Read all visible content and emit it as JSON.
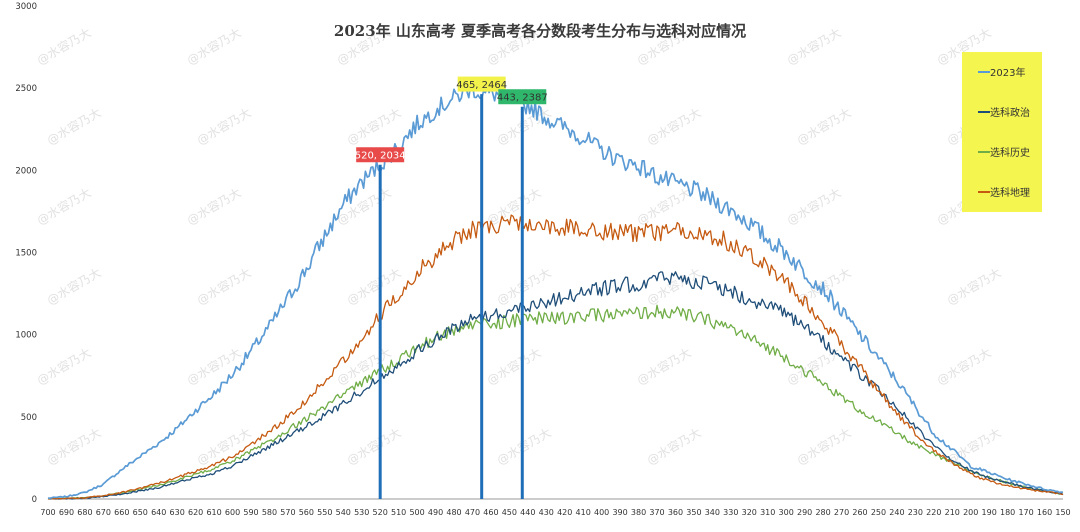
{
  "chart_data": {
    "type": "line",
    "title": "2023年 山东高考 夏季高考各分数段考生分布与选科对应情况",
    "xlabel": "",
    "ylabel": "",
    "x_start": 700,
    "x_end": 150,
    "x_step": 1,
    "x_tick_labels": [
      "700",
      "690",
      "680",
      "670",
      "660",
      "650",
      "640",
      "630",
      "620",
      "610",
      "600",
      "590",
      "580",
      "570",
      "560",
      "550",
      "540",
      "530",
      "520",
      "510",
      "500",
      "490",
      "480",
      "470",
      "460",
      "450",
      "440",
      "430",
      "420",
      "410",
      "400",
      "390",
      "380",
      "370",
      "360",
      "350",
      "340",
      "330",
      "320",
      "310",
      "300",
      "290",
      "280",
      "270",
      "260",
      "250",
      "240",
      "230",
      "220",
      "210",
      "200",
      "190",
      "180",
      "170",
      "160",
      "150"
    ],
    "ylim": [
      0,
      3000
    ],
    "y_ticks": [
      0,
      500,
      1000,
      1500,
      2000,
      2500,
      3000
    ],
    "y_tick_labels": [
      "0",
      "500",
      "1000",
      "1500",
      "2000",
      "2500",
      "3000"
    ],
    "grid": false,
    "legend_position": "top-right",
    "series": [
      {
        "name": "2023年",
        "color": "#5b9bd5",
        "key_points": [
          [
            700,
            5
          ],
          [
            690,
            15
          ],
          [
            680,
            40
          ],
          [
            670,
            90
          ],
          [
            660,
            180
          ],
          [
            650,
            260
          ],
          [
            640,
            340
          ],
          [
            630,
            430
          ],
          [
            620,
            540
          ],
          [
            610,
            640
          ],
          [
            600,
            760
          ],
          [
            590,
            900
          ],
          [
            580,
            1050
          ],
          [
            570,
            1220
          ],
          [
            560,
            1400
          ],
          [
            550,
            1600
          ],
          [
            540,
            1790
          ],
          [
            530,
            1930
          ],
          [
            520,
            2034
          ],
          [
            510,
            2150
          ],
          [
            500,
            2280
          ],
          [
            490,
            2370
          ],
          [
            480,
            2440
          ],
          [
            470,
            2500
          ],
          [
            465,
            2464
          ],
          [
            460,
            2470
          ],
          [
            450,
            2440
          ],
          [
            443,
            2387
          ],
          [
            440,
            2400
          ],
          [
            430,
            2320
          ],
          [
            420,
            2260
          ],
          [
            410,
            2200
          ],
          [
            400,
            2120
          ],
          [
            390,
            2060
          ],
          [
            380,
            2030
          ],
          [
            370,
            1960
          ],
          [
            360,
            1920
          ],
          [
            350,
            1880
          ],
          [
            340,
            1820
          ],
          [
            330,
            1760
          ],
          [
            320,
            1680
          ],
          [
            310,
            1580
          ],
          [
            300,
            1500
          ],
          [
            290,
            1380
          ],
          [
            280,
            1280
          ],
          [
            270,
            1140
          ],
          [
            260,
            1000
          ],
          [
            250,
            860
          ],
          [
            240,
            720
          ],
          [
            230,
            560
          ],
          [
            220,
            400
          ],
          [
            210,
            300
          ],
          [
            200,
            200
          ],
          [
            190,
            160
          ],
          [
            180,
            120
          ],
          [
            170,
            90
          ],
          [
            160,
            60
          ],
          [
            150,
            40
          ]
        ]
      },
      {
        "name": "选科政治",
        "color": "#1f4e79",
        "key_points": [
          [
            700,
            0
          ],
          [
            690,
            2
          ],
          [
            680,
            5
          ],
          [
            670,
            15
          ],
          [
            660,
            30
          ],
          [
            650,
            50
          ],
          [
            640,
            70
          ],
          [
            630,
            100
          ],
          [
            620,
            130
          ],
          [
            610,
            160
          ],
          [
            600,
            200
          ],
          [
            590,
            260
          ],
          [
            580,
            320
          ],
          [
            570,
            380
          ],
          [
            560,
            440
          ],
          [
            550,
            510
          ],
          [
            540,
            580
          ],
          [
            530,
            660
          ],
          [
            520,
            740
          ],
          [
            510,
            820
          ],
          [
            500,
            900
          ],
          [
            490,
            970
          ],
          [
            480,
            1040
          ],
          [
            470,
            1100
          ],
          [
            460,
            1120
          ],
          [
            450,
            1140
          ],
          [
            440,
            1180
          ],
          [
            430,
            1200
          ],
          [
            420,
            1230
          ],
          [
            410,
            1260
          ],
          [
            400,
            1280
          ],
          [
            390,
            1300
          ],
          [
            380,
            1310
          ],
          [
            370,
            1340
          ],
          [
            360,
            1350
          ],
          [
            350,
            1330
          ],
          [
            340,
            1300
          ],
          [
            330,
            1260
          ],
          [
            320,
            1220
          ],
          [
            310,
            1180
          ],
          [
            300,
            1120
          ],
          [
            290,
            1040
          ],
          [
            280,
            960
          ],
          [
            270,
            860
          ],
          [
            260,
            760
          ],
          [
            250,
            660
          ],
          [
            240,
            560
          ],
          [
            230,
            440
          ],
          [
            220,
            320
          ],
          [
            210,
            240
          ],
          [
            200,
            170
          ],
          [
            190,
            130
          ],
          [
            180,
            100
          ],
          [
            170,
            70
          ],
          [
            160,
            50
          ],
          [
            150,
            30
          ]
        ]
      },
      {
        "name": "选科历史",
        "color": "#70ad47",
        "key_points": [
          [
            700,
            0
          ],
          [
            690,
            3
          ],
          [
            680,
            8
          ],
          [
            670,
            20
          ],
          [
            660,
            38
          ],
          [
            650,
            60
          ],
          [
            640,
            85
          ],
          [
            630,
            115
          ],
          [
            620,
            150
          ],
          [
            610,
            185
          ],
          [
            600,
            230
          ],
          [
            590,
            290
          ],
          [
            580,
            350
          ],
          [
            570,
            420
          ],
          [
            560,
            490
          ],
          [
            550,
            560
          ],
          [
            540,
            640
          ],
          [
            530,
            710
          ],
          [
            520,
            780
          ],
          [
            510,
            850
          ],
          [
            500,
            920
          ],
          [
            490,
            980
          ],
          [
            480,
            1030
          ],
          [
            470,
            1060
          ],
          [
            460,
            1070
          ],
          [
            450,
            1080
          ],
          [
            440,
            1100
          ],
          [
            430,
            1100
          ],
          [
            420,
            1100
          ],
          [
            410,
            1110
          ],
          [
            400,
            1120
          ],
          [
            390,
            1120
          ],
          [
            380,
            1130
          ],
          [
            370,
            1140
          ],
          [
            360,
            1130
          ],
          [
            350,
            1110
          ],
          [
            340,
            1080
          ],
          [
            330,
            1040
          ],
          [
            320,
            980
          ],
          [
            310,
            920
          ],
          [
            300,
            860
          ],
          [
            290,
            780
          ],
          [
            280,
            700
          ],
          [
            270,
            620
          ],
          [
            260,
            540
          ],
          [
            250,
            470
          ],
          [
            240,
            400
          ],
          [
            230,
            330
          ],
          [
            220,
            270
          ],
          [
            210,
            220
          ],
          [
            200,
            170
          ],
          [
            190,
            130
          ],
          [
            180,
            100
          ],
          [
            170,
            70
          ],
          [
            160,
            50
          ],
          [
            150,
            30
          ]
        ]
      },
      {
        "name": "选科地理",
        "color": "#c55a11",
        "key_points": [
          [
            700,
            0
          ],
          [
            690,
            3
          ],
          [
            680,
            8
          ],
          [
            670,
            20
          ],
          [
            660,
            40
          ],
          [
            650,
            65
          ],
          [
            640,
            95
          ],
          [
            630,
            130
          ],
          [
            620,
            170
          ],
          [
            610,
            210
          ],
          [
            600,
            260
          ],
          [
            590,
            330
          ],
          [
            580,
            410
          ],
          [
            570,
            500
          ],
          [
            560,
            600
          ],
          [
            550,
            720
          ],
          [
            540,
            850
          ],
          [
            530,
            980
          ],
          [
            520,
            1120
          ],
          [
            510,
            1250
          ],
          [
            500,
            1380
          ],
          [
            490,
            1480
          ],
          [
            480,
            1570
          ],
          [
            470,
            1640
          ],
          [
            460,
            1660
          ],
          [
            450,
            1680
          ],
          [
            440,
            1670
          ],
          [
            430,
            1660
          ],
          [
            420,
            1650
          ],
          [
            410,
            1640
          ],
          [
            400,
            1630
          ],
          [
            390,
            1620
          ],
          [
            380,
            1620
          ],
          [
            370,
            1620
          ],
          [
            360,
            1630
          ],
          [
            350,
            1620
          ],
          [
            340,
            1600
          ],
          [
            330,
            1560
          ],
          [
            320,
            1500
          ],
          [
            310,
            1420
          ],
          [
            300,
            1320
          ],
          [
            290,
            1200
          ],
          [
            280,
            1080
          ],
          [
            270,
            940
          ],
          [
            260,
            800
          ],
          [
            250,
            660
          ],
          [
            240,
            520
          ],
          [
            230,
            400
          ],
          [
            220,
            300
          ],
          [
            210,
            220
          ],
          [
            200,
            150
          ],
          [
            190,
            110
          ],
          [
            180,
            80
          ],
          [
            170,
            60
          ],
          [
            160,
            45
          ],
          [
            150,
            30
          ]
        ]
      }
    ],
    "annotations": [
      {
        "score": 520,
        "label": "520, 2034",
        "value": 2034,
        "bg": "#e84a4a",
        "fg": "#ffffff"
      },
      {
        "score": 465,
        "label": "465, 2464",
        "value": 2464,
        "bg": "#f2f24a",
        "fg": "#333333"
      },
      {
        "score": 443,
        "label": "443, 2387",
        "value": 2387,
        "bg": "#2fb86b",
        "fg": "#333333"
      }
    ],
    "vline_color": "#1f6fb8",
    "legend_bg": "#f5f54f"
  },
  "watermark": "@水容乃大"
}
